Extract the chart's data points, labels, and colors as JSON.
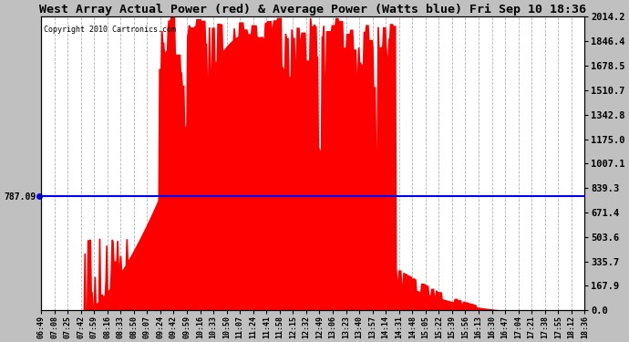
{
  "title": "West Array Actual Power (red) & Average Power (Watts blue) Fri Sep 10 18:36",
  "copyright": "Copyright 2010 Cartronics.com",
  "avg_power": 787.09,
  "y_max": 2014.2,
  "y_ticks": [
    0.0,
    167.9,
    335.7,
    503.6,
    671.4,
    839.3,
    1007.1,
    1175.0,
    1342.8,
    1510.7,
    1678.5,
    1846.4,
    2014.2
  ],
  "x_labels": [
    "06:49",
    "07:08",
    "07:25",
    "07:42",
    "07:59",
    "08:16",
    "08:33",
    "08:50",
    "09:07",
    "09:24",
    "09:42",
    "09:59",
    "10:16",
    "10:33",
    "10:50",
    "11:07",
    "11:24",
    "11:41",
    "11:58",
    "12:15",
    "12:32",
    "12:49",
    "13:06",
    "13:23",
    "13:40",
    "13:57",
    "14:14",
    "14:31",
    "14:48",
    "15:05",
    "15:22",
    "15:39",
    "15:56",
    "16:13",
    "16:30",
    "16:47",
    "17:04",
    "17:21",
    "17:38",
    "17:55",
    "18:12",
    "18:36"
  ],
  "outer_bg": "#c0c0c0",
  "plot_bg": "#ffffff",
  "fill_color": "#ff0000",
  "line_color": "#0000ff",
  "grid_color": "#aaaaaa",
  "title_color": "#000000",
  "tick_label_color": "#000000"
}
